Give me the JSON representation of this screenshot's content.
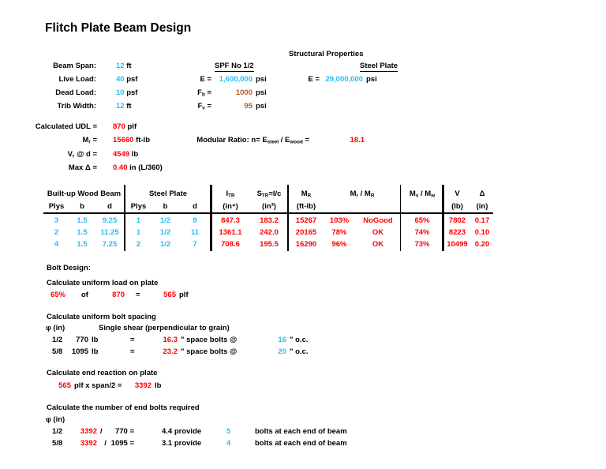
{
  "title": "Flitch Plate Beam Design",
  "colors": {
    "input_value": "#2CBCF0",
    "computed_value": "#FF0000",
    "allowable_stress": "#C05A21"
  },
  "properties": {
    "heading": "Structural Properties",
    "inputs": [
      {
        "label": "Beam Span:",
        "value": "12",
        "unit": "ft"
      },
      {
        "label": "Live Load:",
        "value": "40",
        "unit": "psf"
      },
      {
        "label": "Dead Load:",
        "value": "10",
        "unit": "psf"
      },
      {
        "label": "Trib Width:",
        "value": "12",
        "unit": "ft"
      }
    ],
    "wood": {
      "heading": "SPF No 1/2",
      "e_label": "E =",
      "e_value": "1,600,000",
      "e_unit": "psi",
      "fb": {
        "p": "F",
        "s": "b",
        "q": " =",
        "value": "1000",
        "unit": "psi"
      },
      "fv": {
        "p": "F",
        "s": "v",
        "q": " =",
        "value": "95",
        "unit": "psi"
      }
    },
    "steel": {
      "heading": "Steel Plate",
      "e_label": "E =",
      "e_value": "29,000,000",
      "e_unit": "psi"
    }
  },
  "calc": {
    "udl": {
      "label": "Calculated UDL =",
      "value": "870",
      "unit": "plf"
    },
    "mr": {
      "p": "M",
      "s": "r",
      "q": " =",
      "value": "15660",
      "unit": "ft-lb"
    },
    "vr": {
      "p": "V",
      "s": "r",
      "q": " @ d =",
      "value": "4549",
      "unit": "lb"
    },
    "maxd": {
      "label": "Max Δ =",
      "value": "0.40",
      "unit": "in (L/360)"
    },
    "modular": {
      "p1": "Modular Ratio: n= E",
      "s1": "steel",
      "p2": " / E",
      "s2": "wood",
      "p3": " =",
      "value": "18.1"
    }
  },
  "table": {
    "group1": "Built-up Wood Beam",
    "group2": "Steel Plate",
    "plys": "Plys",
    "b": "b",
    "d": "d",
    "itr": {
      "base": "I",
      "sub": "TR",
      "unit": "(in⁴)"
    },
    "str": {
      "base": "S",
      "sub": "TR",
      "eq": "=I/c",
      "unit": "(in³)"
    },
    "mr": {
      "base": "M",
      "sub": "R",
      "unit": "(ft-lb)"
    },
    "ratio": {
      "p1": "M",
      "s1": "r",
      "p2": " / M",
      "s2": "R"
    },
    "msw": {
      "p1": "M",
      "s1": "s",
      "p2": " / M",
      "s2": "w"
    },
    "v": {
      "label": "V",
      "unit": "(lb)"
    },
    "delta": {
      "label": "Δ",
      "unit": "(in)"
    },
    "rows": [
      {
        "cells": [
          "3",
          "1.5",
          "9.25",
          "1",
          "1/2",
          "9",
          "847.3",
          "183.2",
          "15267",
          "103%",
          "NoGood",
          "65%",
          "7802",
          "0.17"
        ]
      },
      {
        "cells": [
          "2",
          "1.5",
          "11.25",
          "1",
          "1/2",
          "11",
          "1361.1",
          "242.0",
          "20165",
          "78%",
          "OK",
          "74%",
          "8223",
          "0.10"
        ]
      },
      {
        "cells": [
          "4",
          "1.5",
          "7.25",
          "2",
          "1/2",
          "7",
          "708.6",
          "195.5",
          "16290",
          "96%",
          "OK",
          "73%",
          "10499",
          "0.20"
        ]
      }
    ]
  },
  "bolt": {
    "heading": "Bolt Design:",
    "uniform_load": {
      "caption": "Calculate uniform load on plate",
      "pct": "65%",
      "of": "of",
      "w": "870",
      "eq": "=",
      "result": "565",
      "unit": "plf"
    },
    "spacing": {
      "caption": "Calculate uniform bolt spacing",
      "dia_label": "φ (in)",
      "shear_label": "Single shear (perpendicular to grain)",
      "rows": [
        {
          "dia": "1/2",
          "cap": "770",
          "cap_unit": "lb",
          "eq": "=",
          "spacing": "16.3",
          "mid": "\" space bolts @",
          "use": "16",
          "oc": "\" o.c."
        },
        {
          "dia": "5/8",
          "cap": "1095",
          "cap_unit": "lb",
          "eq": "=",
          "spacing": "23.2",
          "mid": "\" space bolts @",
          "use": "20",
          "oc": "\" o.c."
        }
      ]
    },
    "end_reaction": {
      "caption": "Calculate end reaction on plate",
      "value": "565",
      "formula": "plf x span/2 =",
      "result": "3392",
      "unit": "lb"
    },
    "end_bolts": {
      "caption": "Calculate the number of end bolts required",
      "dia_label": "φ (in)",
      "rows": [
        {
          "dia": "1/2",
          "reaction": "3392",
          "slash": "/",
          "cap": "770 =",
          "num": "4.4 provide",
          "use": "5",
          "note": "bolts at each end of beam"
        },
        {
          "dia": "5/8",
          "reaction": "3392",
          "slash": "/",
          "cap": "1095 =",
          "num": "3.1 provide",
          "use": "4",
          "note": "bolts at each end of beam"
        }
      ]
    }
  }
}
